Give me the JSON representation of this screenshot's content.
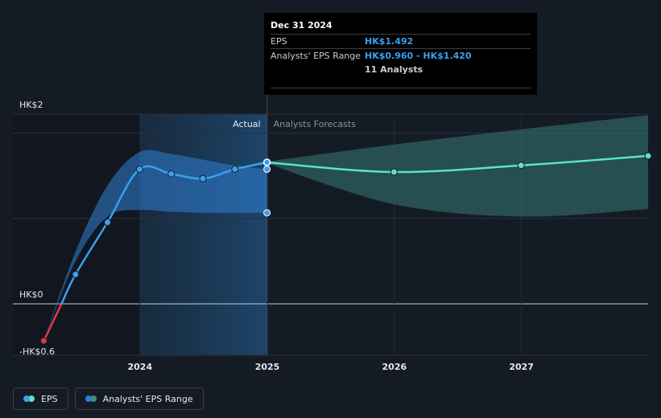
{
  "chart_data": {
    "type": "line",
    "xlim": [
      "2023-01-01",
      "2027-12-31"
    ],
    "ylim": [
      -0.6,
      2
    ],
    "y_ticks": [
      {
        "value": 2,
        "label": "HK$2"
      },
      {
        "value": 0,
        "label": "HK$0"
      },
      {
        "value": -0.6,
        "label": "-HK$0.6"
      }
    ],
    "x_ticks": [
      {
        "date": "2024-01-01",
        "label": "2024"
      },
      {
        "date": "2025-01-01",
        "label": "2025"
      },
      {
        "date": "2026-01-01",
        "label": "2026"
      },
      {
        "date": "2027-01-01",
        "label": "2027"
      }
    ],
    "divider_date": "2024-12-31",
    "actual_label": "Actual",
    "forecast_label": "Analysts Forecasts",
    "series": [
      {
        "name": "EPS",
        "color": "#3aa0ee",
        "negative_color": "#e0393e",
        "points": [
          {
            "date": "2023-03-31",
            "value": -0.39
          },
          {
            "date": "2023-06-30",
            "value": 0.31
          },
          {
            "date": "2023-09-30",
            "value": 0.86
          },
          {
            "date": "2023-12-31",
            "value": 1.42
          },
          {
            "date": "2024-03-31",
            "value": 1.37
          },
          {
            "date": "2024-06-30",
            "value": 1.32
          },
          {
            "date": "2024-09-30",
            "value": 1.42
          },
          {
            "date": "2024-12-31",
            "value": 1.492
          }
        ]
      },
      {
        "name": "EPS Forecast",
        "color": "#5ce2c6",
        "points": [
          {
            "date": "2024-12-31",
            "value": 1.492
          },
          {
            "date": "2025-12-31",
            "value": 1.39
          },
          {
            "date": "2026-12-31",
            "value": 1.46
          },
          {
            "date": "2027-12-31",
            "value": 1.56
          }
        ]
      }
    ],
    "range_actual": {
      "name": "Analysts' EPS Range",
      "color": "#2f7fd6",
      "points": [
        {
          "date": "2023-03-31",
          "low": -0.39,
          "high": -0.39
        },
        {
          "date": "2023-06-30",
          "low": 0.45,
          "high": 0.55
        },
        {
          "date": "2023-09-30",
          "low": 0.92,
          "high": 1.25
        },
        {
          "date": "2023-12-31",
          "low": 0.99,
          "high": 1.6
        },
        {
          "date": "2024-03-31",
          "low": 0.97,
          "high": 1.58
        },
        {
          "date": "2024-06-30",
          "low": 0.96,
          "high": 1.52
        },
        {
          "date": "2024-09-30",
          "low": 0.96,
          "high": 1.46
        },
        {
          "date": "2024-12-31",
          "low": 0.96,
          "high": 1.42
        }
      ]
    },
    "range_forecast": {
      "color": "#3f8f86",
      "points": [
        {
          "date": "2024-12-31",
          "low": 1.48,
          "high": 1.5
        },
        {
          "date": "2025-12-31",
          "low": 1.05,
          "high": 1.68
        },
        {
          "date": "2026-12-31",
          "low": 0.92,
          "high": 1.84
        },
        {
          "date": "2027-12-31",
          "low": 1.0,
          "high": 1.99
        }
      ]
    },
    "tooltip": {
      "date": "Dec 31 2024",
      "rows": [
        {
          "key": "EPS",
          "value": "HK$1.492"
        },
        {
          "key": "Analysts' EPS Range",
          "value": "HK$0.960 - HK$1.420"
        },
        {
          "key": "",
          "value": "11 Analysts"
        }
      ]
    },
    "legend": [
      {
        "label": "EPS",
        "colors": [
          "#3aa0ee",
          "#5ce2c6"
        ]
      },
      {
        "label": "Analysts' EPS Range",
        "colors": [
          "#2f7fd6",
          "#3f8f86"
        ]
      }
    ]
  }
}
